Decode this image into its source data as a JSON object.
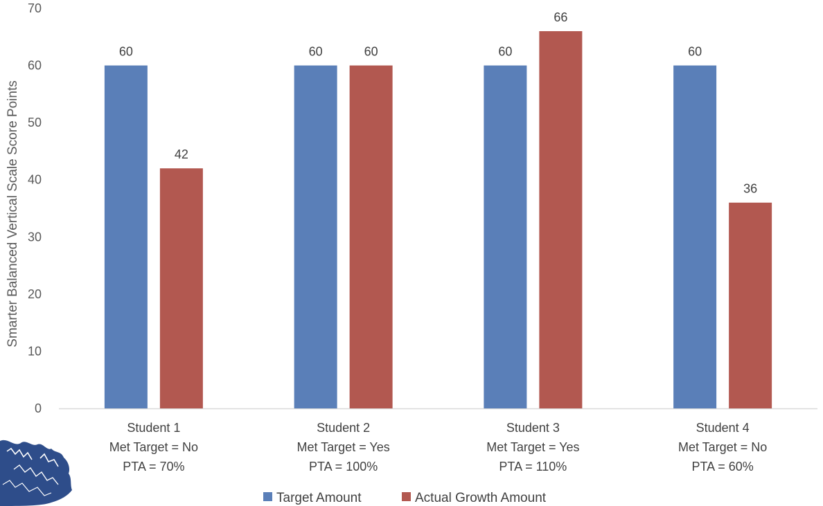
{
  "chart_data": {
    "type": "bar",
    "categories": [
      [
        "Student 1",
        "Met Target = No",
        "PTA = 70%"
      ],
      [
        "Student 2",
        "Met Target = Yes",
        "PTA = 100%"
      ],
      [
        "Student 3",
        "Met Target = Yes",
        "PTA = 110%"
      ],
      [
        "Student 4",
        "Met Target = No",
        "PTA = 60%"
      ]
    ],
    "series": [
      {
        "name": "Target Amount",
        "color": "#5a7fb8",
        "values": [
          60,
          60,
          60,
          60
        ]
      },
      {
        "name": "Actual Growth Amount",
        "color": "#b25850",
        "values": [
          42,
          60,
          66,
          36
        ]
      }
    ],
    "title": "",
    "xlabel": "",
    "ylabel": "Smarter Balanced Vertical Scale Score Points",
    "ylim": [
      0,
      70
    ],
    "yticks": [
      0,
      10,
      20,
      30,
      40,
      50,
      60,
      70
    ],
    "grid": false,
    "data_labels": true,
    "legend_position": "bottom"
  },
  "logo": {
    "icon": "tree-logo-icon",
    "color": "#2e4d8a"
  }
}
